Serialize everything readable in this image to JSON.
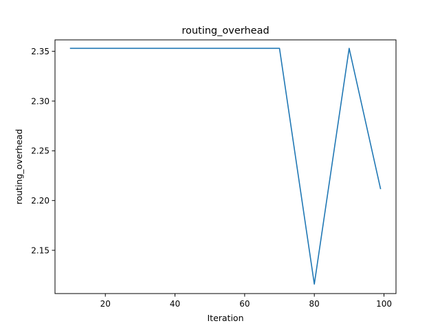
{
  "chart_data": {
    "type": "line",
    "title": "routing_overhead",
    "xlabel": "Iteration",
    "ylabel": "routing_overhead",
    "xlim": [
      5.55,
      103.45
    ],
    "ylim": [
      2.1065,
      2.3615
    ],
    "xticks": [
      20,
      40,
      60,
      80,
      100
    ],
    "yticks": [
      2.15,
      2.2,
      2.25,
      2.3,
      2.35
    ],
    "ytick_labels": [
      "2.15",
      "2.20",
      "2.25",
      "2.30",
      "2.35"
    ],
    "grid": false,
    "series": [
      {
        "color": "#1f77b4",
        "x": [
          10,
          20,
          30,
          40,
          50,
          60,
          70,
          80,
          90,
          99
        ],
        "y": [
          2.353,
          2.353,
          2.353,
          2.353,
          2.353,
          2.353,
          2.353,
          2.116,
          2.353,
          2.212
        ]
      }
    ]
  }
}
